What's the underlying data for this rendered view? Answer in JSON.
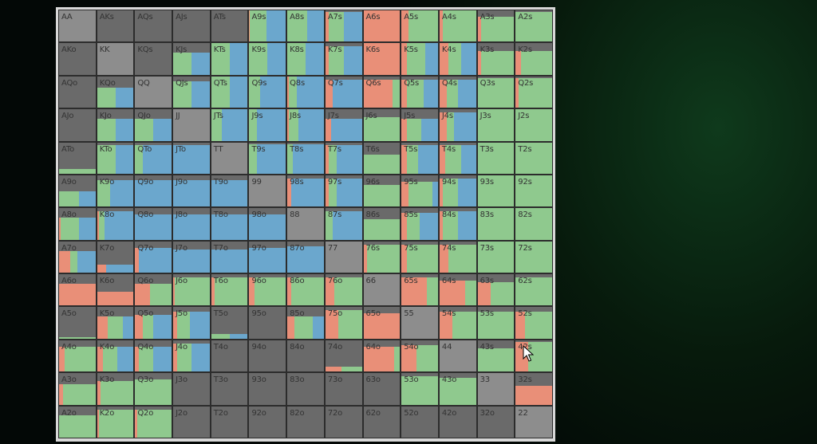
{
  "colors": {
    "fold": "#6a6a6a",
    "pair": "#8d8d8d",
    "red": "#e98f78",
    "green": "#8fc98e",
    "blue": "#6ba7cd"
  },
  "legend_note": "each cell: [fold fraction, red share, green share, blue share]",
  "labels": [
    [
      "AA",
      "AKs",
      "AQs",
      "AJs",
      "ATs",
      "A9s",
      "A8s",
      "A7s",
      "A6s",
      "A5s",
      "A4s",
      "A3s",
      "A2s"
    ],
    [
      "AKo",
      "KK",
      "KQs",
      "KJs",
      "KTs",
      "K9s",
      "K8s",
      "K7s",
      "K6s",
      "K5s",
      "K4s",
      "K3s",
      "K2s"
    ],
    [
      "AQo",
      "KQo",
      "QQ",
      "QJs",
      "QTs",
      "Q9s",
      "Q8s",
      "Q7s",
      "Q6s",
      "Q5s",
      "Q4s",
      "Q3s",
      "Q2s"
    ],
    [
      "AJo",
      "KJo",
      "QJo",
      "JJ",
      "JTs",
      "J9s",
      "J8s",
      "J7s",
      "J6s",
      "J5s",
      "J4s",
      "J3s",
      "J2s"
    ],
    [
      "ATo",
      "KTo",
      "QTo",
      "JTo",
      "TT",
      "T9s",
      "T8s",
      "T7s",
      "T6s",
      "T5s",
      "T4s",
      "T3s",
      "T2s"
    ],
    [
      "A9o",
      "K9o",
      "Q9o",
      "J9o",
      "T9o",
      "99",
      "98s",
      "97s",
      "96s",
      "95s",
      "94s",
      "93s",
      "92s"
    ],
    [
      "A8o",
      "K8o",
      "Q8o",
      "J8o",
      "T8o",
      "98o",
      "88",
      "87s",
      "86s",
      "85s",
      "84s",
      "83s",
      "82s"
    ],
    [
      "A7o",
      "K7o",
      "Q7o",
      "J7o",
      "T7o",
      "97o",
      "87o",
      "77",
      "76s",
      "75s",
      "74s",
      "73s",
      "72s"
    ],
    [
      "A6o",
      "K6o",
      "Q6o",
      "J6o",
      "T6o",
      "96o",
      "86o",
      "76o",
      "66",
      "65s",
      "64s",
      "63s",
      "62s"
    ],
    [
      "A5o",
      "K5o",
      "Q5o",
      "J5o",
      "T5o",
      "95o",
      "85o",
      "75o",
      "65o",
      "55",
      "54s",
      "53s",
      "52s"
    ],
    [
      "A4o",
      "K4o",
      "Q4o",
      "J4o",
      "T4o",
      "94o",
      "84o",
      "74o",
      "64o",
      "54o",
      "44",
      "43s",
      "42s"
    ],
    [
      "A3o",
      "K3o",
      "Q3o",
      "J3o",
      "T3o",
      "93o",
      "83o",
      "73o",
      "63o",
      "53o",
      "43o",
      "33",
      "32s"
    ],
    [
      "A2o",
      "K2o",
      "Q2o",
      "J2o",
      "T2o",
      "92o",
      "82o",
      "72o",
      "62o",
      "52o",
      "42o",
      "32o",
      "22"
    ]
  ],
  "mix": [
    [
      [
        1,
        0,
        0,
        0
      ],
      [
        1,
        0,
        0,
        0
      ],
      [
        1,
        0,
        0,
        0
      ],
      [
        1,
        0,
        0,
        0
      ],
      [
        1,
        0,
        0,
        0
      ],
      [
        0,
        0.02,
        0.45,
        0.53
      ],
      [
        0,
        0,
        0.55,
        0.45
      ],
      [
        0.05,
        0.1,
        0.4,
        0.5
      ],
      [
        0,
        1,
        0,
        0
      ],
      [
        0,
        0.2,
        0.8,
        0
      ],
      [
        0,
        0.1,
        0.9,
        0
      ],
      [
        0.2,
        0.1,
        0.9,
        0
      ],
      [
        0.05,
        0,
        1,
        0
      ]
    ],
    [
      [
        1,
        0,
        0,
        0
      ],
      [
        1,
        0,
        0,
        0
      ],
      [
        1,
        0,
        0,
        0
      ],
      [
        0.3,
        0,
        0.5,
        0.5
      ],
      [
        0,
        0,
        0.5,
        0.5
      ],
      [
        0,
        0,
        0.5,
        0.5
      ],
      [
        0,
        0,
        0.5,
        0.5
      ],
      [
        0.1,
        0.1,
        0.4,
        0.5
      ],
      [
        0,
        1,
        0,
        0
      ],
      [
        0,
        0.15,
        0.5,
        0.35
      ],
      [
        0,
        0.25,
        0.35,
        0.4
      ],
      [
        0.25,
        0.1,
        0.9,
        0
      ],
      [
        0.25,
        0.15,
        0.85,
        0
      ]
    ],
    [
      [
        1,
        0,
        0,
        0
      ],
      [
        0.35,
        0,
        0.5,
        0.5
      ],
      [
        1,
        0,
        0,
        0
      ],
      [
        0.15,
        0,
        0.5,
        0.5
      ],
      [
        0,
        0,
        0.5,
        0.5
      ],
      [
        0,
        0,
        0.3,
        0.7
      ],
      [
        0,
        0.05,
        0.2,
        0.75
      ],
      [
        0.1,
        0.2,
        0,
        0.8
      ],
      [
        0.1,
        0.8,
        0.2,
        0
      ],
      [
        0.1,
        0.15,
        0.45,
        0.4
      ],
      [
        0.1,
        0.2,
        0.3,
        0.5
      ],
      [
        0.05,
        0,
        1,
        0
      ],
      [
        0.05,
        0.08,
        0.92,
        0
      ]
    ],
    [
      [
        1,
        0,
        0,
        0
      ],
      [
        0.3,
        0,
        0.5,
        0.5
      ],
      [
        0.3,
        0,
        0.5,
        0.5
      ],
      [
        1,
        0,
        0,
        0
      ],
      [
        0,
        0,
        0.3,
        0.7
      ],
      [
        0,
        0,
        0.2,
        0.8
      ],
      [
        0,
        0.05,
        0.25,
        0.7
      ],
      [
        0.3,
        0.15,
        0,
        0.85
      ],
      [
        0.25,
        0,
        1,
        0
      ],
      [
        0.3,
        0.15,
        0.4,
        0.45
      ],
      [
        0.1,
        0.2,
        0.2,
        0.6
      ],
      [
        0,
        0,
        1,
        0
      ],
      [
        0,
        0,
        1,
        0
      ]
    ],
    [
      [
        0.85,
        0,
        1,
        0
      ],
      [
        0.1,
        0,
        0.5,
        0.5
      ],
      [
        0.1,
        0,
        0.2,
        0.8
      ],
      [
        0.1,
        0,
        0,
        1
      ],
      [
        1,
        0,
        0,
        0
      ],
      [
        0.05,
        0,
        0.2,
        0.8
      ],
      [
        0.05,
        0,
        0.15,
        0.85
      ],
      [
        0.1,
        0.1,
        0.2,
        0.7
      ],
      [
        0.4,
        0,
        1,
        0
      ],
      [
        0.1,
        0.15,
        0.3,
        0.55
      ],
      [
        0.1,
        0.15,
        0.45,
        0.4
      ],
      [
        0,
        0,
        1,
        0
      ],
      [
        0,
        0,
        1,
        0
      ]
    ],
    [
      [
        0.5,
        0,
        0.55,
        0.45
      ],
      [
        0.15,
        0,
        0.35,
        0.65
      ],
      [
        0.15,
        0,
        0,
        1
      ],
      [
        0.15,
        0,
        0,
        1
      ],
      [
        0.15,
        0,
        0,
        1
      ],
      [
        1,
        0,
        0,
        0
      ],
      [
        0.1,
        0.1,
        0,
        0.9
      ],
      [
        0.1,
        0.1,
        0.2,
        0.7
      ],
      [
        0.3,
        0,
        1,
        0
      ],
      [
        0.2,
        0.2,
        0.65,
        0.15
      ],
      [
        0.1,
        0.1,
        0.4,
        0.5
      ],
      [
        0,
        0,
        1,
        0
      ],
      [
        0,
        0,
        1,
        0
      ]
    ],
    [
      [
        0.3,
        0.05,
        0.5,
        0.45
      ],
      [
        0.1,
        0.05,
        0.15,
        0.8
      ],
      [
        0.2,
        0,
        0,
        1
      ],
      [
        0.2,
        0,
        0,
        1
      ],
      [
        0.2,
        0,
        0,
        1
      ],
      [
        0.2,
        0,
        0,
        1
      ],
      [
        1,
        0,
        0,
        0
      ],
      [
        0.1,
        0,
        0.2,
        0.8
      ],
      [
        0.35,
        0,
        1,
        0
      ],
      [
        0.15,
        0.15,
        0.35,
        0.5
      ],
      [
        0.1,
        0.1,
        0.4,
        0.5
      ],
      [
        0,
        0,
        1,
        0
      ],
      [
        0,
        0,
        1,
        0
      ]
    ],
    [
      [
        0.3,
        0.3,
        0.2,
        0.5
      ],
      [
        0.75,
        0.25,
        0,
        0.75
      ],
      [
        0.2,
        0.1,
        0,
        0.9
      ],
      [
        0.25,
        0,
        0,
        1
      ],
      [
        0.25,
        0,
        0,
        1
      ],
      [
        0.2,
        0,
        0,
        1
      ],
      [
        0.15,
        0,
        0,
        1
      ],
      [
        1,
        0,
        0,
        0
      ],
      [
        0.1,
        0.1,
        0.9,
        0
      ],
      [
        0.1,
        0.15,
        0.85,
        0
      ],
      [
        0.1,
        0.25,
        0.75,
        0
      ],
      [
        0,
        0,
        1,
        0
      ],
      [
        0,
        0,
        1,
        0
      ]
    ],
    [
      [
        0.3,
        1,
        0,
        0
      ],
      [
        0.55,
        1,
        0,
        0
      ],
      [
        0.3,
        0.4,
        0.6,
        0
      ],
      [
        0.1,
        0.05,
        0.95,
        0
      ],
      [
        0.1,
        0.1,
        0.9,
        0
      ],
      [
        0.1,
        0.15,
        0.85,
        0
      ],
      [
        0.1,
        0.1,
        0.9,
        0
      ],
      [
        0.1,
        0.25,
        0.75,
        0
      ],
      [
        1,
        0,
        0,
        0
      ],
      [
        0.1,
        0.7,
        0.3,
        0
      ],
      [
        0.2,
        0.7,
        0.3,
        0
      ],
      [
        0.25,
        0.35,
        0.65,
        0
      ],
      [
        0.1,
        0,
        1,
        0
      ]
    ],
    [
      [
        0.95,
        0,
        1,
        0
      ],
      [
        0.3,
        0.3,
        0.4,
        0.3
      ],
      [
        0.25,
        0.2,
        0.3,
        0.5
      ],
      [
        0.15,
        0.1,
        0.35,
        0.55
      ],
      [
        0.85,
        0,
        0.5,
        0.5
      ],
      [
        1,
        0,
        0,
        0
      ],
      [
        0.3,
        0.2,
        0.5,
        0.3
      ],
      [
        0.1,
        0.35,
        0.65,
        0
      ],
      [
        0.2,
        1,
        0,
        0
      ],
      [
        1,
        0,
        0,
        0
      ],
      [
        0.15,
        0.35,
        0.65,
        0
      ],
      [
        0.15,
        0,
        1,
        0
      ],
      [
        0.15,
        0.25,
        0.75,
        0
      ]
    ],
    [
      [
        0.2,
        0.15,
        0.85,
        0
      ],
      [
        0.2,
        0.15,
        0.4,
        0.45
      ],
      [
        0.2,
        0.1,
        0.4,
        0.5
      ],
      [
        0.1,
        0.1,
        0.4,
        0.5
      ],
      [
        1,
        0,
        0,
        0
      ],
      [
        1,
        0,
        0,
        0
      ],
      [
        1,
        0,
        0,
        0
      ],
      [
        0.85,
        0.45,
        0.55,
        0
      ],
      [
        0.2,
        0.85,
        0.15,
        0
      ],
      [
        0.15,
        0.4,
        0.6,
        0
      ],
      [
        1,
        0,
        0,
        0
      ],
      [
        0.25,
        0,
        1,
        0
      ],
      [
        0.05,
        0.35,
        0.65,
        0
      ]
    ],
    [
      [
        0.35,
        0.1,
        0.9,
        0
      ],
      [
        0.25,
        0.1,
        0.9,
        0
      ],
      [
        0.2,
        0,
        1,
        0
      ],
      [
        1,
        0,
        0,
        0
      ],
      [
        1,
        0,
        0,
        0
      ],
      [
        1,
        0,
        0,
        0
      ],
      [
        1,
        0,
        0,
        0
      ],
      [
        1,
        0,
        0,
        0
      ],
      [
        1,
        0,
        0,
        0
      ],
      [
        0.1,
        0,
        1,
        0
      ],
      [
        0.15,
        0,
        1,
        0
      ],
      [
        1,
        0,
        0,
        0
      ],
      [
        0.4,
        1,
        0,
        0
      ]
    ],
    [
      [
        0.3,
        0,
        1,
        0
      ],
      [
        0.1,
        0.05,
        0.95,
        0
      ],
      [
        0.1,
        0.05,
        0.95,
        0
      ],
      [
        1,
        0,
        0,
        0
      ],
      [
        1,
        0,
        0,
        0
      ],
      [
        1,
        0,
        0,
        0
      ],
      [
        1,
        0,
        0,
        0
      ],
      [
        1,
        0,
        0,
        0
      ],
      [
        1,
        0,
        0,
        0
      ],
      [
        1,
        0,
        0,
        0
      ],
      [
        1,
        0,
        0,
        0
      ],
      [
        1,
        0,
        0,
        0
      ],
      [
        1,
        0,
        0,
        0
      ]
    ]
  ]
}
